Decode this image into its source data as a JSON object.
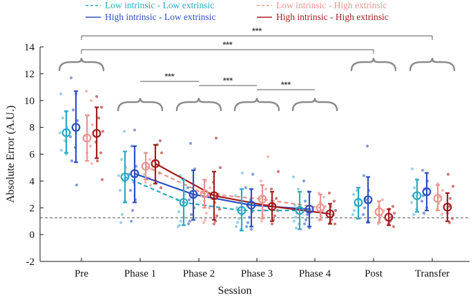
{
  "chart_data": {
    "type": "scatter",
    "title": "",
    "xlabel": "Session",
    "ylabel": "Absolute Error (A.U.)",
    "ylim": [
      -2,
      14
    ],
    "yticks": [
      -2,
      0,
      2,
      4,
      6,
      8,
      10,
      12,
      14
    ],
    "categories": [
      "Pre",
      "Phase 1",
      "Phase 2",
      "Phase 3",
      "Phase 4",
      "Post",
      "Transfer"
    ],
    "reference_line": 1.25,
    "colors": {
      "low_low": "#2aa8c4",
      "high_low": "#2b4fc1",
      "low_high": "#e8938f",
      "high_high": "#a01c1c",
      "low_low_pts": "#88c9e0",
      "high_low_pts": "#6f8bd8",
      "low_high_pts": "#f0b0ac",
      "high_high_pts": "#c46060",
      "bracket": "#8a8a8a"
    },
    "series": [
      {
        "key": "low_low",
        "name": "Low intrinsic - Low extrinsic",
        "linestyle": "dashed",
        "mean": [
          7.6,
          4.3,
          2.4,
          1.8,
          1.8,
          2.4,
          2.9
        ],
        "err_low": [
          6.1,
          2.4,
          0.7,
          0.3,
          0.4,
          1.2,
          1.7
        ],
        "err_high": [
          9.2,
          6.2,
          4.1,
          3.4,
          3.2,
          3.5,
          4.1
        ]
      },
      {
        "key": "high_low",
        "name": "High intrinsic - Low extrinsic",
        "linestyle": "solid",
        "mean": [
          8.0,
          4.55,
          3.0,
          2.2,
          1.9,
          2.6,
          3.2
        ],
        "err_low": [
          5.4,
          2.4,
          1.1,
          0.6,
          0.6,
          0.9,
          1.8
        ],
        "err_high": [
          10.7,
          6.6,
          4.8,
          3.4,
          3.2,
          4.3,
          4.6
        ]
      },
      {
        "key": "low_high",
        "name": "Low intrinsic - High extrinsic",
        "linestyle": "dashed",
        "mean": [
          7.2,
          5.1,
          3.05,
          2.65,
          2.0,
          1.7,
          2.7
        ],
        "err_low": [
          5.5,
          4.1,
          2.0,
          1.2,
          1.1,
          0.9,
          1.8
        ],
        "err_high": [
          8.9,
          6.1,
          4.1,
          3.7,
          3.0,
          2.5,
          3.7
        ]
      },
      {
        "key": "high_high",
        "name": "High intrinsic - High extrinsic",
        "linestyle": "solid",
        "mean": [
          7.55,
          5.3,
          2.9,
          2.1,
          1.55,
          1.3,
          2.05
        ],
        "err_low": [
          5.7,
          3.8,
          1.1,
          1.0,
          0.8,
          0.7,
          1.0
        ],
        "err_high": [
          9.5,
          6.7,
          4.7,
          3.2,
          2.3,
          1.9,
          3.1
        ]
      }
    ],
    "points": {
      "low_low": [
        [
          10.5,
          9.2,
          8.7,
          8.0,
          7.6,
          7.0,
          6.3,
          6.0
        ],
        [
          7.7,
          5.6,
          5.0,
          4.4,
          4.0,
          3.3,
          2.5,
          1.5,
          0.9
        ],
        [
          4.4,
          3.0,
          2.6,
          2.2,
          1.7,
          1.3,
          1.0,
          0.7,
          0.6
        ],
        [
          4.6,
          2.9,
          2.4,
          2.0,
          1.5,
          1.2,
          0.9,
          0.6,
          0.4
        ],
        [
          4.3,
          3.4,
          2.2,
          2.0,
          1.6,
          1.3,
          1.0,
          0.8,
          0.5
        ],
        [
          3.3,
          3.0,
          2.6,
          2.2,
          1.8,
          1.5,
          1.2
        ],
        [
          4.9,
          4.1,
          3.5,
          2.9,
          2.4,
          1.9,
          1.5
        ]
      ],
      "high_low": [
        [
          11.7,
          10.5,
          9.3,
          8.5,
          7.3,
          6.5,
          5.5,
          3.7
        ],
        [
          7.8,
          6.6,
          5.1,
          4.5,
          3.9,
          3.3,
          2.6,
          1.8,
          1.0
        ],
        [
          6.8,
          4.9,
          3.5,
          2.9,
          2.6,
          2.0,
          1.5,
          1.0,
          0.8
        ],
        [
          4.5,
          3.5,
          2.6,
          2.2,
          1.7,
          1.3,
          0.9,
          0.6,
          0.4
        ],
        [
          4.0,
          3.2,
          2.5,
          1.9,
          1.5,
          1.1,
          0.8,
          0.5
        ],
        [
          6.6,
          4.4,
          3.3,
          2.6,
          2.0,
          1.5,
          1.0
        ],
        [
          4.8,
          4.0,
          3.4,
          2.9,
          2.5,
          2.0,
          1.6
        ]
      ],
      "low_high": [
        [
          10.7,
          10.0,
          8.9,
          8.2,
          7.4,
          6.6,
          6.1,
          5.3
        ],
        [
          5.6,
          5.3,
          4.9,
          4.5,
          4.2,
          3.9,
          3.7
        ],
        [
          4.0,
          3.5,
          3.2,
          2.9,
          2.5,
          2.0,
          1.6,
          1.1,
          0.9
        ],
        [
          5.8,
          4.0,
          3.4,
          2.8,
          2.2,
          1.8,
          1.4,
          1.0
        ],
        [
          3.1,
          2.8,
          2.4,
          2.1,
          1.8,
          1.4,
          1.1
        ],
        [
          2.6,
          2.1,
          1.8,
          1.4,
          1.1,
          0.8
        ],
        [
          3.8,
          3.3,
          2.8,
          2.3,
          1.9,
          1.5
        ]
      ],
      "high_high": [
        [
          10.3,
          9.5,
          8.7,
          7.7,
          6.9,
          6.1,
          5.5,
          4.1
        ],
        [
          7.0,
          6.7,
          6.1,
          5.5,
          4.6,
          4.0,
          3.5
        ],
        [
          7.2,
          5.0,
          3.9,
          3.0,
          2.4,
          1.9,
          1.4,
          1.0,
          0.8
        ],
        [
          4.7,
          3.4,
          2.7,
          2.2,
          1.8,
          1.4,
          1.1,
          0.8
        ],
        [
          3.1,
          2.5,
          2.1,
          1.8,
          1.5,
          1.1,
          0.9,
          0.8
        ],
        [
          2.1,
          1.9,
          1.6,
          1.3,
          1.0,
          0.8,
          0.6
        ],
        [
          4.5,
          3.6,
          2.7,
          2.1,
          1.6,
          1.2,
          0.9
        ]
      ]
    },
    "significance": [
      {
        "from": "Pre",
        "to": "Transfer",
        "label": "***"
      },
      {
        "from": "Pre",
        "to": "Post",
        "label": "***"
      },
      {
        "from": "Phase 1",
        "to": "Phase 2",
        "label": "***"
      },
      {
        "from": "Phase 2",
        "to": "Phase 3",
        "label": "***"
      },
      {
        "from": "Phase 3",
        "to": "Phase 4",
        "label": "***"
      }
    ]
  }
}
